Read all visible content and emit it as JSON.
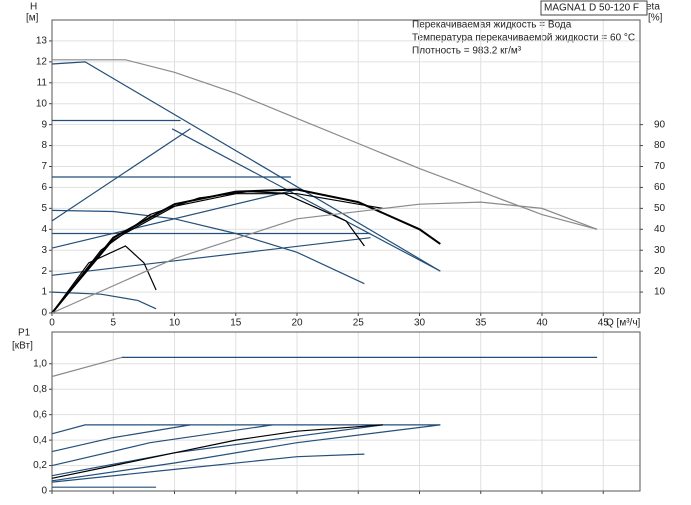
{
  "chart_data": [
    {
      "type": "line",
      "model": "MAGNA1 D 50-120 F",
      "annotations": [
        "Перекачиваемая жидкость = Вода",
        "Температура перекачиваемой жидкости = 60 °C",
        "Плотность = 983.2 кг/м³"
      ],
      "y_label": "H",
      "y_unit": "[м]",
      "y2_label": "eta",
      "y2_unit": "[%]",
      "x_label": "Q [м³/ч]",
      "xlim": [
        0,
        48
      ],
      "xticks": [
        0,
        5,
        10,
        15,
        20,
        25,
        30,
        35,
        40,
        45
      ],
      "show_xtick_labels": true,
      "ylim": [
        0,
        14
      ],
      "yticks": [
        0,
        1,
        2,
        3,
        4,
        5,
        6,
        7,
        8,
        9,
        10,
        11,
        12,
        13
      ],
      "y2lim": [
        0,
        140
      ],
      "y2ticks": [
        10,
        20,
        30,
        40,
        50,
        60,
        70,
        80,
        90
      ],
      "grid": true,
      "series": [
        {
          "color": "#8a8a8a",
          "x": [
            0,
            6,
            10,
            15,
            20,
            25,
            30,
            35,
            40,
            44.5
          ],
          "values": [
            12.1,
            12.1,
            11.5,
            10.5,
            9.3,
            8.1,
            6.9,
            5.8,
            4.7,
            4.0
          ]
        },
        {
          "color": "#244f7a",
          "x": [
            0,
            2.7,
            31.7
          ],
          "values": [
            11.9,
            12.0,
            2.0
          ]
        },
        {
          "color": "#244f7a",
          "x": [
            9.8,
            31.7
          ],
          "values": [
            8.8,
            2.0
          ]
        },
        {
          "color": "#244f7a",
          "x": [
            0,
            10.5
          ],
          "values": [
            9.2,
            9.2
          ]
        },
        {
          "color": "#244f7a",
          "x": [
            0,
            19.5
          ],
          "values": [
            6.5,
            6.5
          ]
        },
        {
          "color": "#244f7a",
          "x": [
            0,
            26
          ],
          "values": [
            3.8,
            3.8
          ]
        },
        {
          "color": "#244f7a",
          "x": [
            0,
            11.3
          ],
          "values": [
            4.4,
            8.8
          ]
        },
        {
          "color": "#244f7a",
          "x": [
            0,
            20
          ],
          "values": [
            3.1,
            5.9
          ]
        },
        {
          "color": "#244f7a",
          "x": [
            0,
            26
          ],
          "values": [
            1.8,
            3.6
          ]
        },
        {
          "color": "#244f7a",
          "x": [
            0,
            5,
            10,
            15,
            20,
            25.5
          ],
          "values": [
            4.9,
            4.85,
            4.5,
            3.8,
            2.9,
            1.4
          ]
        },
        {
          "color": "#244f7a",
          "x": [
            0,
            4,
            7,
            8.5
          ],
          "values": [
            1.0,
            0.9,
            0.6,
            0.2
          ]
        },
        {
          "color": "#000000",
          "axis": "y2",
          "width": 2,
          "x": [
            0,
            5,
            10,
            15,
            20,
            25,
            30,
            31.7
          ],
          "values": [
            0,
            36,
            52,
            58,
            59,
            53,
            40,
            33
          ]
        },
        {
          "color": "#000000",
          "axis": "y2",
          "x": [
            0,
            5,
            10,
            15,
            19,
            24,
            25.5
          ],
          "values": [
            0,
            35,
            51,
            57,
            57,
            44,
            32
          ]
        },
        {
          "color": "#000000",
          "axis": "y2",
          "x": [
            0,
            4,
            8,
            12,
            16,
            20,
            25,
            27
          ],
          "values": [
            0,
            30,
            47,
            55,
            58,
            57,
            52,
            50
          ]
        },
        {
          "color": "#000000",
          "axis": "y2",
          "x": [
            0,
            3,
            6,
            7.5,
            8.5
          ],
          "values": [
            0,
            24,
            32,
            24,
            11
          ]
        },
        {
          "color": "#8a8a8a",
          "axis": "y2",
          "x": [
            0,
            10,
            20,
            30,
            35,
            40,
            44.5
          ],
          "values": [
            0,
            26,
            45,
            52,
            53,
            50,
            40
          ]
        }
      ]
    },
    {
      "type": "line",
      "y_label": "P1",
      "y_unit": "[кВт]",
      "xlim": [
        0,
        48
      ],
      "xticks": [
        0,
        5,
        10,
        15,
        20,
        25,
        30,
        35,
        40,
        45
      ],
      "show_xtick_labels": false,
      "ylim": [
        0,
        1.25
      ],
      "yticks": [
        0,
        {
          "value": 0.2,
          "label": "0,2"
        },
        {
          "value": 0.4,
          "label": "0,4"
        },
        {
          "value": 0.6,
          "label": "0,6"
        },
        {
          "value": 0.8,
          "label": "0,8"
        },
        {
          "value": 1.0,
          "label": "1,0"
        }
      ],
      "grid": true,
      "series": [
        {
          "color": "#8a8a8a",
          "x": [
            0,
            5.7
          ],
          "values": [
            0.9,
            1.05
          ]
        },
        {
          "color": "#244f7a",
          "x": [
            5.7,
            44.5
          ],
          "values": [
            1.05,
            1.05
          ]
        },
        {
          "color": "#244f7a",
          "x": [
            0,
            2.7,
            31.7
          ],
          "values": [
            0.45,
            0.52,
            0.52
          ]
        },
        {
          "color": "#244f7a",
          "x": [
            0,
            5,
            11.3
          ],
          "values": [
            0.31,
            0.42,
            0.52
          ]
        },
        {
          "color": "#244f7a",
          "x": [
            0,
            8,
            18
          ],
          "values": [
            0.2,
            0.38,
            0.52
          ]
        },
        {
          "color": "#244f7a",
          "x": [
            0,
            10,
            20,
            27
          ],
          "values": [
            0.12,
            0.3,
            0.43,
            0.52
          ]
        },
        {
          "color": "#244f7a",
          "x": [
            0,
            10,
            20,
            31.7
          ],
          "values": [
            0.08,
            0.22,
            0.38,
            0.52
          ]
        },
        {
          "color": "#000000",
          "x": [
            0,
            5,
            10,
            15,
            20,
            27
          ],
          "values": [
            0.1,
            0.2,
            0.3,
            0.4,
            0.47,
            0.52
          ]
        },
        {
          "color": "#244f7a",
          "x": [
            0,
            10,
            20,
            25.5
          ],
          "values": [
            0.07,
            0.17,
            0.27,
            0.29
          ]
        },
        {
          "color": "#244f7a",
          "x": [
            0,
            8.5
          ],
          "values": [
            0.03,
            0.03
          ]
        }
      ]
    }
  ]
}
